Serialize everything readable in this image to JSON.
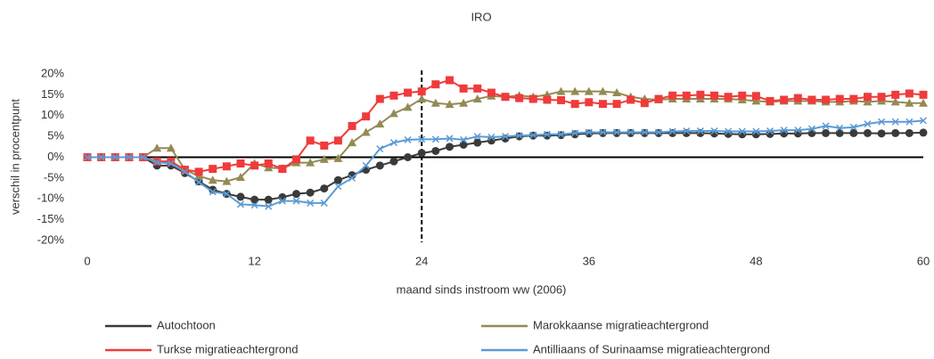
{
  "chart_data": {
    "type": "line",
    "title": "IRO",
    "x_label": "maand sinds instroom ww (2006)",
    "y_label": "verschil in procentpunt",
    "x": [
      0,
      1,
      2,
      3,
      4,
      5,
      6,
      7,
      8,
      9,
      10,
      11,
      12,
      13,
      14,
      15,
      16,
      17,
      18,
      19,
      20,
      21,
      22,
      23,
      24,
      25,
      26,
      27,
      28,
      29,
      30,
      31,
      32,
      33,
      34,
      35,
      36,
      37,
      38,
      39,
      40,
      41,
      42,
      43,
      44,
      45,
      46,
      47,
      48,
      49,
      50,
      51,
      52,
      53,
      54,
      55,
      56,
      57,
      58,
      59,
      60
    ],
    "xlim": [
      0,
      60
    ],
    "xticks": [
      0,
      12,
      24,
      36,
      48,
      60
    ],
    "ylim": [
      -20,
      20
    ],
    "yticks": [
      {
        "value": -20,
        "label": "-20%"
      },
      {
        "value": -15,
        "label": "-15%"
      },
      {
        "value": -10,
        "label": "-10%"
      },
      {
        "value": -5,
        "label": "-5%"
      },
      {
        "value": 0,
        "label": "0%"
      },
      {
        "value": 5,
        "label": "5%"
      },
      {
        "value": 10,
        "label": "10%"
      },
      {
        "value": 15,
        "label": "15%"
      },
      {
        "value": 20,
        "label": "20%"
      }
    ],
    "grid": false,
    "vline": 24,
    "series": [
      {
        "name": "Autochtoon",
        "color": "#3a3a3a",
        "marker": "circle",
        "values": [
          0,
          0,
          0,
          0,
          0,
          -2,
          -2,
          -3.8,
          -5.8,
          -7.8,
          -8.8,
          -9.5,
          -10.2,
          -10.2,
          -9.6,
          -8.8,
          -8.5,
          -7.5,
          -5.5,
          -4.3,
          -3,
          -2,
          -1,
          0,
          1,
          1.5,
          2.5,
          3,
          3.5,
          4,
          4.5,
          5,
          5.2,
          5.2,
          5.3,
          5.5,
          5.7,
          5.8,
          5.8,
          5.8,
          5.8,
          5.8,
          5.8,
          5.8,
          5.8,
          5.7,
          5.6,
          5.5,
          5.5,
          5.6,
          5.7,
          5.7,
          5.8,
          5.8,
          5.8,
          5.8,
          5.8,
          5.7,
          5.8,
          5.8,
          5.9
        ]
      },
      {
        "name": "Marokkaanse migratieachtergrond",
        "color": "#948a54",
        "marker": "triangle",
        "values": [
          0,
          0,
          0,
          0,
          0,
          2.2,
          2.2,
          -3,
          -4.5,
          -5.5,
          -5.8,
          -4.8,
          -1.5,
          -2.5,
          -2.7,
          -1.3,
          -1.3,
          -0.5,
          -0.3,
          3.5,
          6,
          8,
          10.5,
          12,
          14,
          13,
          12.7,
          13,
          14,
          14.7,
          14.5,
          14.8,
          14.5,
          15,
          15.8,
          15.8,
          15.8,
          15.8,
          15.5,
          14.5,
          14,
          13.8,
          14,
          14,
          14,
          14,
          14,
          13.8,
          13.5,
          13.3,
          13.5,
          13.5,
          13.5,
          13.3,
          13.3,
          13.5,
          13.3,
          13.5,
          13.3,
          13,
          13
        ]
      },
      {
        "name": "Turkse migratieachtergrond",
        "color": "#ef3b3b",
        "marker": "square",
        "values": [
          0,
          0,
          0,
          0,
          0,
          -1,
          -1,
          -3,
          -3.5,
          -2.8,
          -2.2,
          -1.5,
          -2,
          -1.5,
          -2.8,
          -0.5,
          4,
          2.8,
          4,
          7.5,
          9.8,
          14,
          14.8,
          15.5,
          15.8,
          17.5,
          18.5,
          16.5,
          16.5,
          15.5,
          14.5,
          14.2,
          14,
          13.8,
          13.7,
          12.8,
          13.2,
          12.8,
          12.8,
          13.8,
          13,
          14,
          14.8,
          14.8,
          15,
          14.8,
          14.5,
          14.8,
          14.7,
          13.5,
          13.8,
          14.2,
          13.8,
          13.8,
          14,
          14,
          14.5,
          14.5,
          15,
          15.3,
          15
        ]
      },
      {
        "name": "Antilliaans of Surinaamse migratieachtergrond",
        "color": "#5b9bd5",
        "marker": "cross",
        "values": [
          0,
          0,
          0,
          0,
          0,
          -1.2,
          -1.5,
          -3.5,
          -6,
          -8.3,
          -8.8,
          -11.3,
          -11.5,
          -11.8,
          -10.5,
          -10.5,
          -11,
          -11,
          -7,
          -5,
          -2,
          2,
          3.5,
          4.2,
          4.3,
          4.3,
          4.5,
          4.2,
          5,
          4.8,
          5,
          5.2,
          5.3,
          5.5,
          5.5,
          5.8,
          6,
          6,
          6,
          6,
          6,
          6,
          6.2,
          6.3,
          6.3,
          6.3,
          6.2,
          6.2,
          6.2,
          6.3,
          6.5,
          6.5,
          6.8,
          7.5,
          7,
          7.2,
          8,
          8.5,
          8.5,
          8.5,
          8.8
        ]
      }
    ]
  }
}
